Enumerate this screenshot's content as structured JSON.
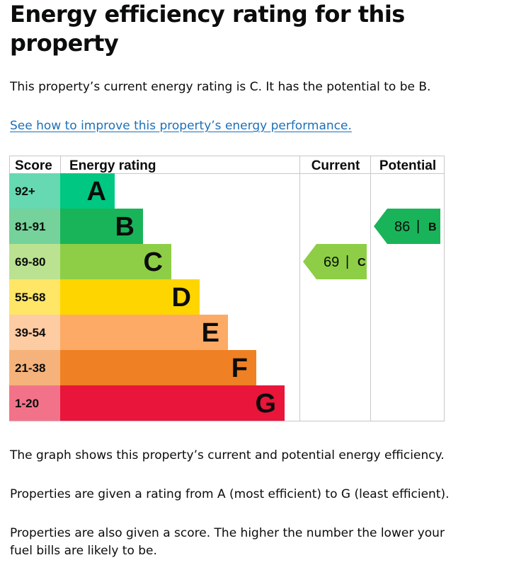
{
  "title": "Energy efficiency rating for this property",
  "intro": "This property’s current energy rating is C. It has the potential to be B.",
  "improve_link": "See how to improve this property’s energy performance.",
  "paragraphs": [
    "The graph shows this property’s current and potential energy efficiency.",
    "Properties are given a rating from A (most efficient) to G (least efficient).",
    "Properties are also given a score. The higher the number the lower your fuel bills are likely to be."
  ],
  "chart_data": {
    "type": "bar",
    "headers": {
      "score": "Score",
      "rating": "Energy rating",
      "current": "Current",
      "potential": "Potential"
    },
    "bands": [
      {
        "letter": "A",
        "range": "92+",
        "color": "#00c781",
        "score_bg": "#66d9b3"
      },
      {
        "letter": "B",
        "range": "81-91",
        "color": "#19b459",
        "score_bg": "#75d29b"
      },
      {
        "letter": "C",
        "range": "69-80",
        "color": "#8dce46",
        "score_bg": "#bbe290"
      },
      {
        "letter": "D",
        "range": "55-68",
        "color": "#ffd500",
        "score_bg": "#ffe666"
      },
      {
        "letter": "E",
        "range": "39-54",
        "color": "#fcaa65",
        "score_bg": "#fdcca3"
      },
      {
        "letter": "F",
        "range": "21-38",
        "color": "#ef8023",
        "score_bg": "#f5b37b"
      },
      {
        "letter": "G",
        "range": "1-20",
        "color": "#e9153b",
        "score_bg": "#f27389"
      }
    ],
    "current": {
      "score": 69,
      "letter": "C",
      "color": "#8dce46"
    },
    "potential": {
      "score": 86,
      "letter": "B",
      "color": "#19b459"
    }
  }
}
